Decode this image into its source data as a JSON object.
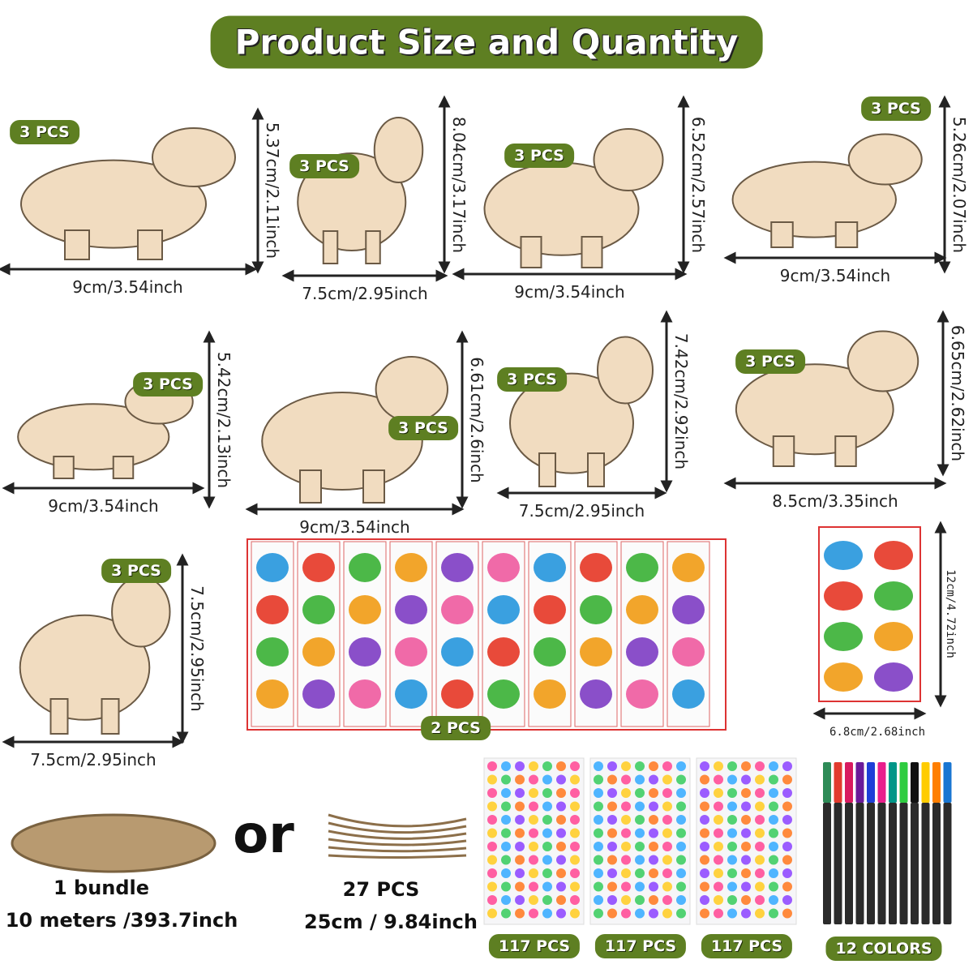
{
  "header": {
    "title": "Product Size and Quantity"
  },
  "dinosaurs": [
    {
      "quantity": "3 PCS",
      "width": "9cm/3.54inch",
      "height": "5.37cm/2.11inch"
    },
    {
      "quantity": "3 PCS",
      "width": "7.5cm/2.95inch",
      "height": "8.04cm/3.17inch"
    },
    {
      "quantity": "3 PCS",
      "width": "9cm/3.54inch",
      "height": "6.52cm/2.57inch"
    },
    {
      "quantity": "3 PCS",
      "width": "9cm/3.54inch",
      "height": "5.26cm/2.07inch"
    },
    {
      "quantity": "3 PCS",
      "width": "9cm/3.54inch",
      "height": "5.42cm/2.13inch"
    },
    {
      "quantity": "3 PCS",
      "width": "9cm/3.54inch",
      "height": "6.61cm/2.6inch"
    },
    {
      "quantity": "3 PCS",
      "width": "7.5cm/2.95inch",
      "height": "7.42cm/2.92inch"
    },
    {
      "quantity": "3 PCS",
      "width": "8.5cm/3.35inch",
      "height": "6.65cm/2.62inch"
    },
    {
      "quantity": "3 PCS",
      "width": "7.5cm/2.95inch",
      "height": "7.5cm/2.95inch"
    }
  ],
  "stickers": {
    "quantity": "2 PCS",
    "width": "6.8cm/2.68inch",
    "height": "12cm/4.72inch"
  },
  "twine": {
    "bundle": {
      "quantity": "1 bundle",
      "length": "10 meters /393.7inch"
    },
    "separator": "or",
    "strands": {
      "quantity": "27 PCS",
      "length": "25cm / 9.84inch"
    }
  },
  "gems": [
    {
      "quantity": "117 PCS"
    },
    {
      "quantity": "117 PCS"
    },
    {
      "quantity": "117 PCS"
    }
  ],
  "markers": {
    "quantity": "12 COLORS"
  }
}
